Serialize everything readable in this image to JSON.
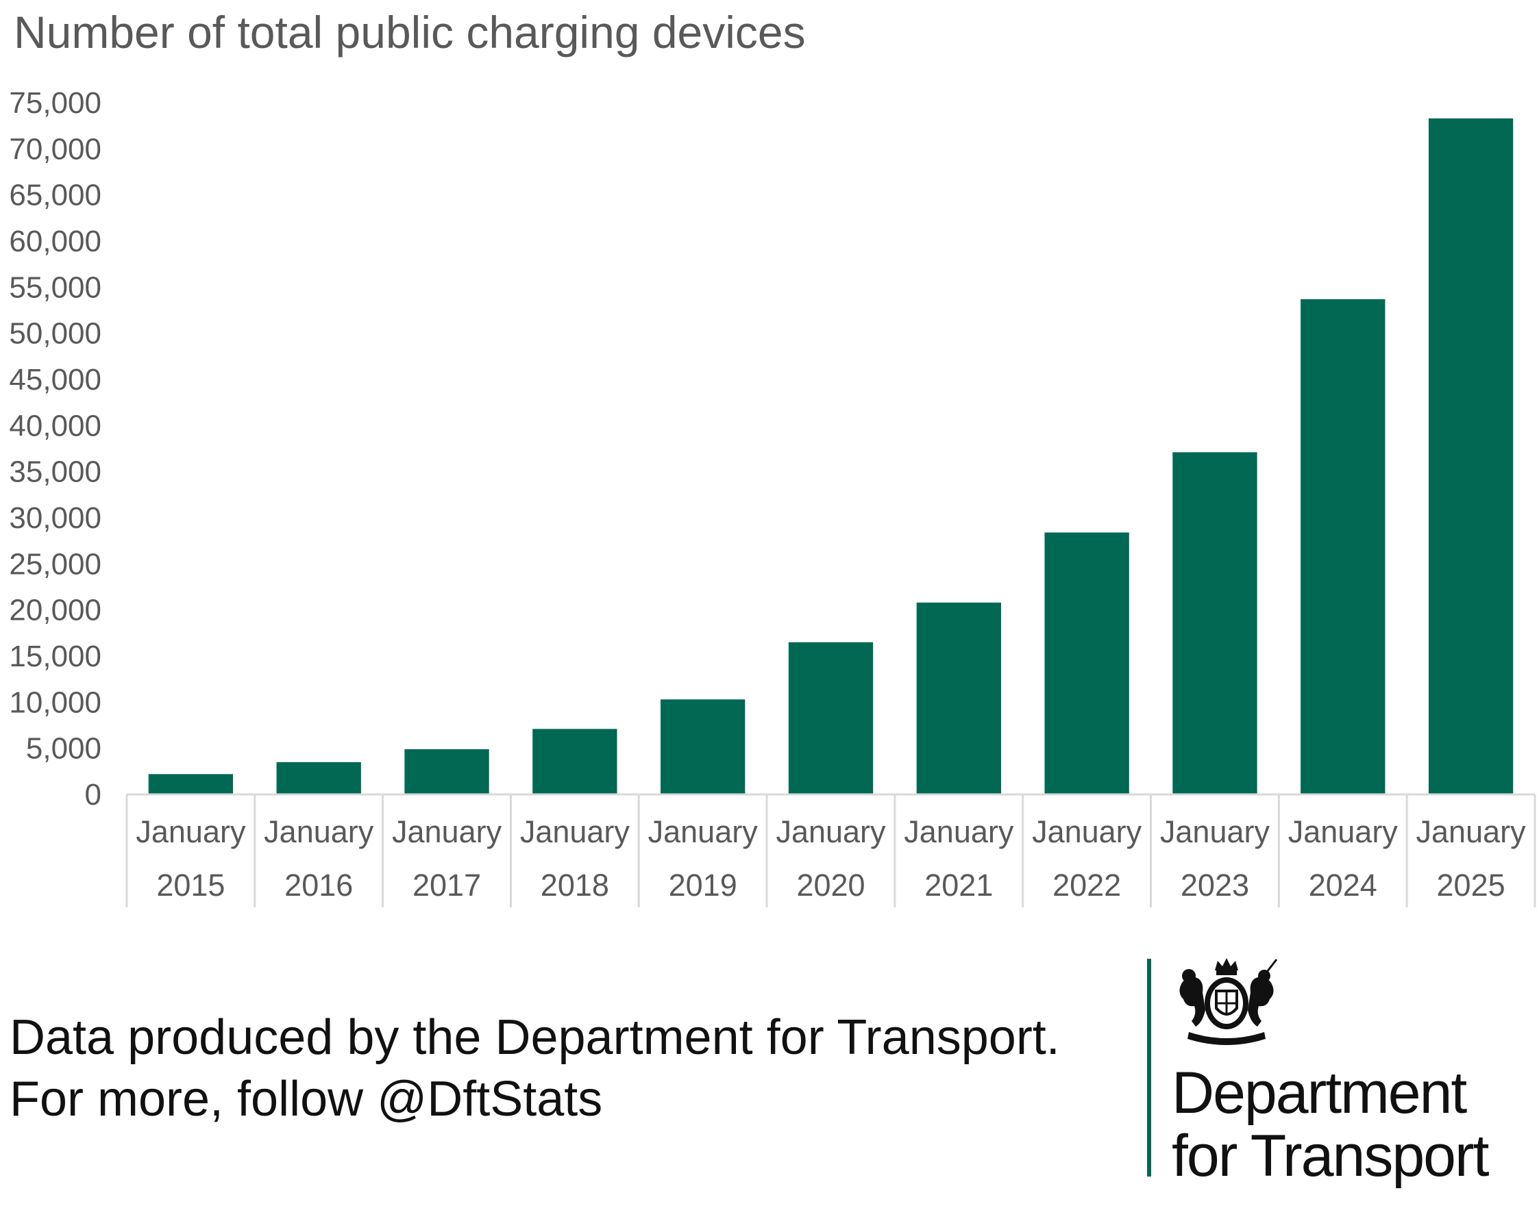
{
  "chart_data": {
    "type": "bar",
    "title": "Number of total public charging devices",
    "xlabel": "",
    "ylabel": "",
    "categories": [
      [
        "January",
        "2015"
      ],
      [
        "January",
        "2016"
      ],
      [
        "January",
        "2017"
      ],
      [
        "January",
        "2018"
      ],
      [
        "January",
        "2019"
      ],
      [
        "January",
        "2020"
      ],
      [
        "January",
        "2021"
      ],
      [
        "January",
        "2022"
      ],
      [
        "January",
        "2023"
      ],
      [
        "January",
        "2024"
      ],
      [
        "January",
        "2025"
      ]
    ],
    "values": [
      2200,
      3500,
      4900,
      7100,
      10300,
      16500,
      20800,
      28400,
      37100,
      53700,
      73300
    ],
    "ylim": [
      0,
      75000
    ],
    "yticks": [
      "0",
      "5,000",
      "10,000",
      "15,000",
      "20,000",
      "25,000",
      "30,000",
      "35,000",
      "40,000",
      "45,000",
      "50,000",
      "55,000",
      "60,000",
      "65,000",
      "70,000",
      "75,000"
    ],
    "grid": false,
    "legend": "none",
    "bar_color": "#006853"
  },
  "footer": {
    "line1": "Data produced by the Department for Transport.",
    "line2": "For more, follow @DftStats"
  },
  "logo": {
    "name_line1": "Department",
    "name_line2": "for Transport",
    "accent_color": "#006853",
    "icon": "royal-coat-of-arms-icon"
  }
}
